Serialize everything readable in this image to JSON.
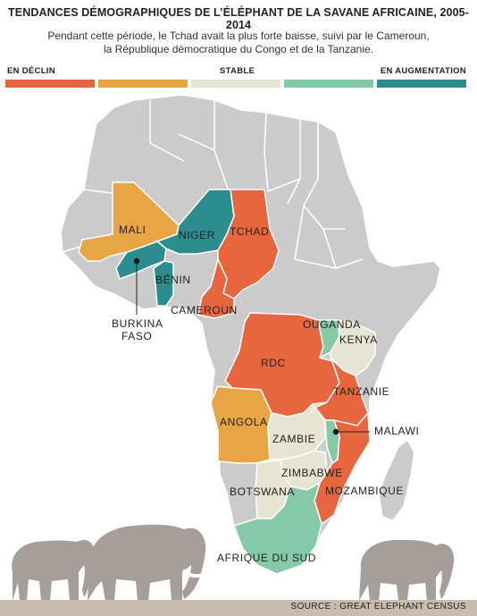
{
  "title": "TENDANCES DÉMOGRAPHIQUES DE L’ÉLÉPHANT DE LA SAVANE AFRICAINE, 2005-2014",
  "subtitle": {
    "line1": "Pendant cette période, le Tchad avait la plus forte baisse, suivi par le Cameroun,",
    "line2": "la République démocratique du Congo et de la Tanzanie."
  },
  "legend": {
    "left": "EN DÉCLIN",
    "middle": "STABLE",
    "right": "EN AUGMENTATION",
    "colors": [
      "#e8663d",
      "#e8a544",
      "#e6e4d3",
      "#84c9a8",
      "#2b8d8d"
    ]
  },
  "colors": {
    "land": "#cbcbcb",
    "border": "#ffffff",
    "decline": "#e8663d",
    "moderate_decline": "#e8a544",
    "stable": "#e6e4d3",
    "moderate_increase": "#84c9a8",
    "increase": "#2b8d8d",
    "elephant": "#a59e99",
    "ground": "#c7bcae"
  },
  "countries": {
    "mali": {
      "label": "MALI",
      "trend": "moderate_decline"
    },
    "niger": {
      "label": "NIGER",
      "trend": "increase"
    },
    "tchad": {
      "label": "TCHAD",
      "trend": "decline"
    },
    "burkina": {
      "label1": "BURKINA",
      "label2": "FASO",
      "trend": "increase"
    },
    "benin": {
      "label": "BÉNIN",
      "trend": "increase"
    },
    "cameroun": {
      "label": "CAMEROUN",
      "trend": "decline"
    },
    "ouganda": {
      "label": "OUGANDA",
      "trend": "moderate_increase"
    },
    "kenya": {
      "label": "KENYA",
      "trend": "stable"
    },
    "rdc": {
      "label": "RDC",
      "trend": "decline"
    },
    "tanzanie": {
      "label": "TANZANIE",
      "trend": "decline"
    },
    "malawi": {
      "label": "MALAWI",
      "trend": "moderate_increase"
    },
    "angola": {
      "label": "ANGOLA",
      "trend": "moderate_decline"
    },
    "zambie": {
      "label": "ZAMBIE",
      "trend": "stable"
    },
    "zimbabwe": {
      "label": "ZIMBABWE",
      "trend": "stable"
    },
    "botswana": {
      "label": "BOTSWANA",
      "trend": "stable"
    },
    "mozambique": {
      "label": "MOZAMBIQUE",
      "trend": "decline"
    },
    "afrique_du_sud": {
      "label": "AFRIQUE DU SUD",
      "trend": "moderate_increase"
    }
  },
  "source": "SOURCE : GREAT ELEPHANT CENSUS"
}
